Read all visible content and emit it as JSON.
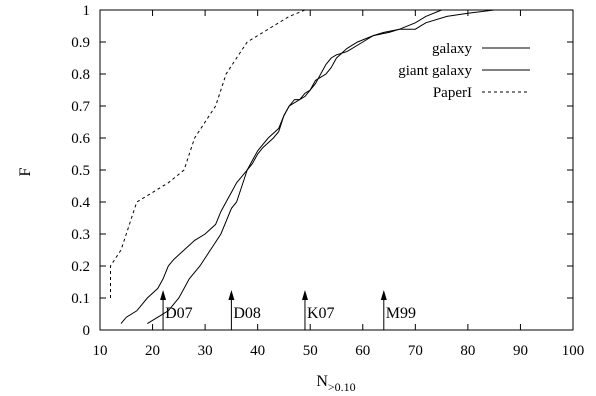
{
  "chart_data": {
    "type": "line",
    "xlabel_main": "N",
    "xlabel_sub": ">0.10",
    "ylabel": "F",
    "xlim": [
      10,
      100
    ],
    "ylim": [
      0,
      1
    ],
    "xticks": [
      "10",
      "20",
      "30",
      "40",
      "50",
      "60",
      "70",
      "80",
      "90",
      "100"
    ],
    "yticks": [
      "0",
      "0.1",
      "0.2",
      "0.3",
      "0.4",
      "0.5",
      "0.6",
      "0.7",
      "0.8",
      "0.9",
      "1"
    ],
    "legend_position": "top-right",
    "series": [
      {
        "name": "galaxy",
        "style": "solid",
        "points": [
          [
            19,
            0.02
          ],
          [
            21,
            0.04
          ],
          [
            23,
            0.06
          ],
          [
            25,
            0.1
          ],
          [
            26,
            0.13
          ],
          [
            27,
            0.16
          ],
          [
            29,
            0.2
          ],
          [
            31,
            0.25
          ],
          [
            33,
            0.3
          ],
          [
            35,
            0.38
          ],
          [
            36,
            0.4
          ],
          [
            37,
            0.45
          ],
          [
            38,
            0.5
          ],
          [
            39,
            0.52
          ],
          [
            40,
            0.55
          ],
          [
            41,
            0.57
          ],
          [
            43,
            0.6
          ],
          [
            44,
            0.62
          ],
          [
            45,
            0.67
          ],
          [
            46,
            0.7
          ],
          [
            47,
            0.72
          ],
          [
            48,
            0.72
          ],
          [
            49,
            0.74
          ],
          [
            50,
            0.75
          ],
          [
            51,
            0.78
          ],
          [
            53,
            0.8
          ],
          [
            54,
            0.82
          ],
          [
            55,
            0.85
          ],
          [
            57,
            0.88
          ],
          [
            59,
            0.9
          ],
          [
            62,
            0.92
          ],
          [
            64,
            0.93
          ],
          [
            67,
            0.94
          ],
          [
            70,
            0.94
          ],
          [
            72,
            0.96
          ],
          [
            76,
            0.98
          ],
          [
            80,
            0.99
          ],
          [
            85,
            1.0
          ],
          [
            90,
            1.0
          ]
        ]
      },
      {
        "name": "giant galaxy",
        "style": "solid",
        "points": [
          [
            14,
            0.02
          ],
          [
            15,
            0.04
          ],
          [
            17,
            0.06
          ],
          [
            19,
            0.1
          ],
          [
            21,
            0.13
          ],
          [
            22,
            0.16
          ],
          [
            23,
            0.2
          ],
          [
            24,
            0.22
          ],
          [
            26,
            0.25
          ],
          [
            28,
            0.28
          ],
          [
            30,
            0.3
          ],
          [
            32,
            0.33
          ],
          [
            33,
            0.37
          ],
          [
            34,
            0.4
          ],
          [
            35,
            0.43
          ],
          [
            36,
            0.46
          ],
          [
            37,
            0.48
          ],
          [
            38,
            0.5
          ],
          [
            39,
            0.53
          ],
          [
            40,
            0.56
          ],
          [
            42,
            0.6
          ],
          [
            44,
            0.63
          ],
          [
            45,
            0.67
          ],
          [
            46,
            0.7
          ],
          [
            48,
            0.72
          ],
          [
            49,
            0.73
          ],
          [
            50,
            0.75
          ],
          [
            51,
            0.77
          ],
          [
            52,
            0.8
          ],
          [
            53,
            0.83
          ],
          [
            54,
            0.85
          ],
          [
            55,
            0.86
          ],
          [
            57,
            0.87
          ],
          [
            60,
            0.9
          ],
          [
            62,
            0.92
          ],
          [
            65,
            0.93
          ],
          [
            67,
            0.94
          ],
          [
            70,
            0.96
          ],
          [
            72,
            0.98
          ],
          [
            75,
            1.0
          ]
        ]
      },
      {
        "name": "PaperI",
        "style": "dashed",
        "points": [
          [
            12,
            0.1
          ],
          [
            12,
            0.2
          ],
          [
            14,
            0.25
          ],
          [
            15,
            0.3
          ],
          [
            16,
            0.35
          ],
          [
            17,
            0.4
          ],
          [
            20,
            0.43
          ],
          [
            23,
            0.46
          ],
          [
            26,
            0.5
          ],
          [
            27,
            0.55
          ],
          [
            28,
            0.6
          ],
          [
            30,
            0.65
          ],
          [
            32,
            0.7
          ],
          [
            33,
            0.75
          ],
          [
            34,
            0.8
          ],
          [
            36,
            0.85
          ],
          [
            38,
            0.9
          ],
          [
            40,
            0.92
          ],
          [
            42,
            0.94
          ],
          [
            44,
            0.96
          ],
          [
            46,
            0.98
          ],
          [
            49,
            1.0
          ]
        ]
      }
    ],
    "annotations": [
      {
        "label": "D07",
        "x": 22
      },
      {
        "label": "D08",
        "x": 35
      },
      {
        "label": "K07",
        "x": 49
      },
      {
        "label": "M99",
        "x": 64
      }
    ]
  }
}
